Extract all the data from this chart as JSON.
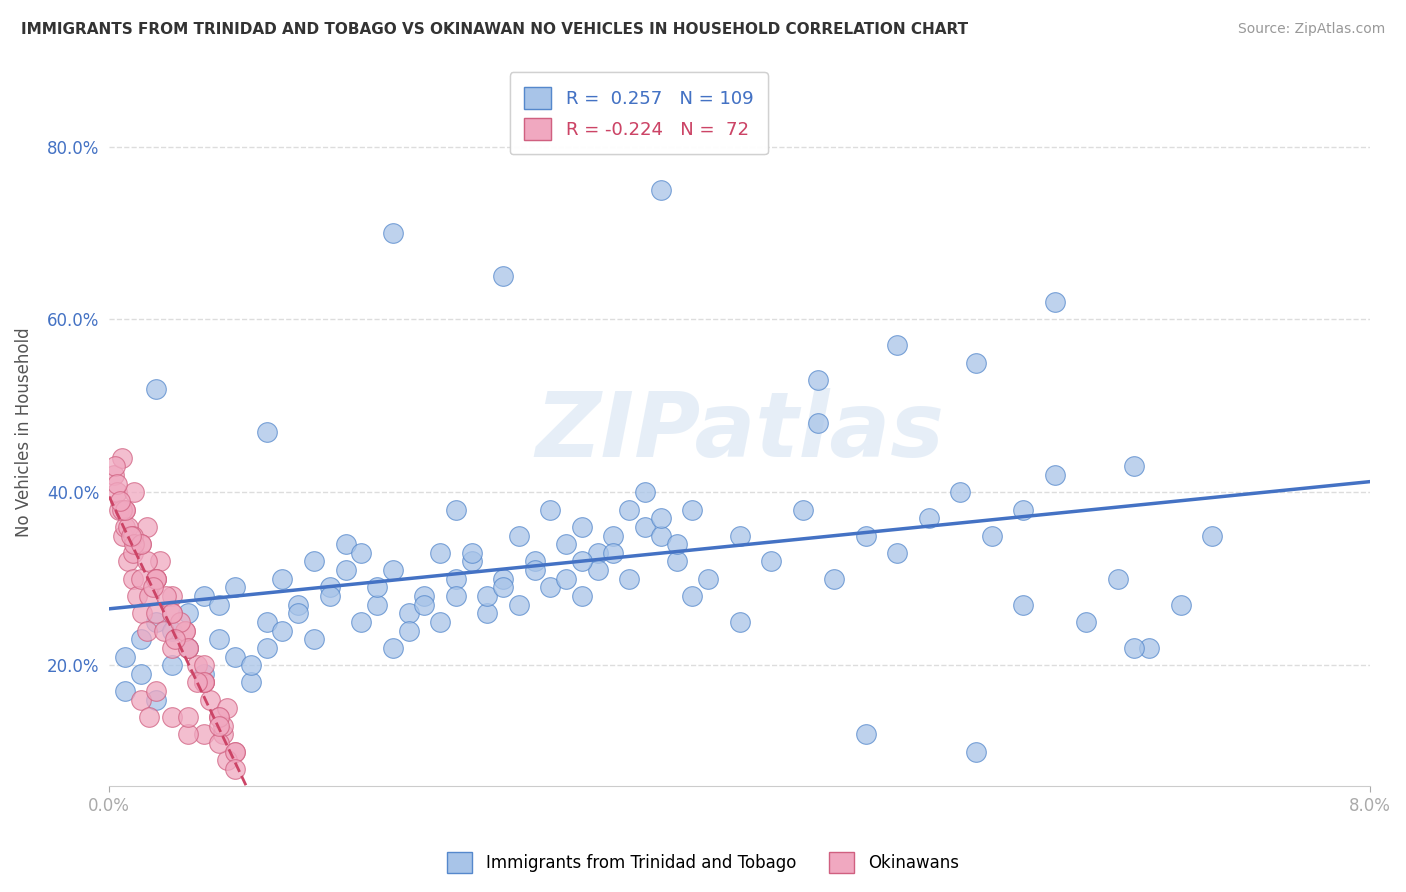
{
  "title": "IMMIGRANTS FROM TRINIDAD AND TOBAGO VS OKINAWAN NO VEHICLES IN HOUSEHOLD CORRELATION CHART",
  "source": "Source: ZipAtlas.com",
  "ylabel": "No Vehicles in Household",
  "xlim": [
    0.0,
    0.08
  ],
  "ylim": [
    0.06,
    0.88
  ],
  "yticks": [
    0.2,
    0.4,
    0.6,
    0.8
  ],
  "ytick_labels": [
    "20.0%",
    "40.0%",
    "60.0%",
    "80.0%"
  ],
  "blue_R": 0.257,
  "blue_N": 109,
  "pink_R": -0.224,
  "pink_N": 72,
  "blue_label": "Immigrants from Trinidad and Tobago",
  "pink_label": "Okinawans",
  "blue_color": "#a8c4e8",
  "pink_color": "#f0a8c0",
  "blue_edge_color": "#5588cc",
  "pink_edge_color": "#d06080",
  "blue_line_color": "#4472c4",
  "pink_line_color": "#cc4466",
  "watermark": "ZIPatlas",
  "background_color": "#ffffff",
  "grid_color": "#dddddd",
  "blue_x": [
    0.001,
    0.002,
    0.001,
    0.003,
    0.002,
    0.004,
    0.003,
    0.005,
    0.004,
    0.006,
    0.005,
    0.007,
    0.006,
    0.008,
    0.007,
    0.009,
    0.008,
    0.01,
    0.009,
    0.011,
    0.01,
    0.012,
    0.011,
    0.013,
    0.012,
    0.014,
    0.013,
    0.015,
    0.014,
    0.016,
    0.015,
    0.017,
    0.016,
    0.018,
    0.017,
    0.019,
    0.018,
    0.02,
    0.019,
    0.021,
    0.02,
    0.022,
    0.021,
    0.023,
    0.022,
    0.024,
    0.023,
    0.025,
    0.024,
    0.026,
    0.025,
    0.027,
    0.026,
    0.028,
    0.027,
    0.029,
    0.028,
    0.03,
    0.029,
    0.031,
    0.03,
    0.032,
    0.031,
    0.033,
    0.032,
    0.034,
    0.033,
    0.035,
    0.034,
    0.036,
    0.035,
    0.037,
    0.036,
    0.038,
    0.037,
    0.04,
    0.042,
    0.044,
    0.046,
    0.048,
    0.05,
    0.052,
    0.054,
    0.056,
    0.058,
    0.06,
    0.062,
    0.064,
    0.066,
    0.068,
    0.07,
    0.045,
    0.05,
    0.055,
    0.06,
    0.065,
    0.003,
    0.01,
    0.018,
    0.025,
    0.035,
    0.045,
    0.055,
    0.065,
    0.022,
    0.048,
    0.058,
    0.03,
    0.04
  ],
  "blue_y": [
    0.17,
    0.19,
    0.21,
    0.16,
    0.23,
    0.2,
    0.25,
    0.22,
    0.24,
    0.19,
    0.26,
    0.23,
    0.28,
    0.21,
    0.27,
    0.18,
    0.29,
    0.25,
    0.2,
    0.3,
    0.22,
    0.27,
    0.24,
    0.32,
    0.26,
    0.29,
    0.23,
    0.34,
    0.28,
    0.25,
    0.31,
    0.27,
    0.33,
    0.22,
    0.29,
    0.26,
    0.31,
    0.28,
    0.24,
    0.33,
    0.27,
    0.3,
    0.25,
    0.32,
    0.28,
    0.26,
    0.33,
    0.3,
    0.28,
    0.35,
    0.29,
    0.32,
    0.27,
    0.38,
    0.31,
    0.34,
    0.29,
    0.36,
    0.3,
    0.33,
    0.28,
    0.35,
    0.31,
    0.38,
    0.33,
    0.36,
    0.3,
    0.35,
    0.4,
    0.32,
    0.37,
    0.28,
    0.34,
    0.3,
    0.38,
    0.35,
    0.32,
    0.38,
    0.3,
    0.35,
    0.33,
    0.37,
    0.4,
    0.35,
    0.38,
    0.42,
    0.25,
    0.3,
    0.22,
    0.27,
    0.35,
    0.53,
    0.57,
    0.55,
    0.62,
    0.22,
    0.52,
    0.47,
    0.7,
    0.65,
    0.75,
    0.48,
    0.1,
    0.43,
    0.38,
    0.12,
    0.27,
    0.32,
    0.25
  ],
  "pink_x": [
    0.0003,
    0.0006,
    0.0009,
    0.0012,
    0.0015,
    0.0018,
    0.0021,
    0.0024,
    0.0005,
    0.001,
    0.0015,
    0.002,
    0.0025,
    0.003,
    0.0035,
    0.004,
    0.0008,
    0.0016,
    0.0024,
    0.0032,
    0.004,
    0.0048,
    0.0056,
    0.0064,
    0.0072,
    0.001,
    0.002,
    0.003,
    0.004,
    0.005,
    0.006,
    0.007,
    0.0012,
    0.0024,
    0.0036,
    0.0048,
    0.006,
    0.0072,
    0.0015,
    0.003,
    0.0045,
    0.006,
    0.0075,
    0.002,
    0.004,
    0.006,
    0.008,
    0.0025,
    0.005,
    0.0075,
    0.0004,
    0.0008,
    0.0016,
    0.003,
    0.005,
    0.007,
    0.0005,
    0.001,
    0.002,
    0.003,
    0.004,
    0.005,
    0.006,
    0.007,
    0.008,
    0.0007,
    0.0014,
    0.0028,
    0.0042,
    0.0056,
    0.007,
    0.008
  ],
  "pink_y": [
    0.42,
    0.38,
    0.35,
    0.32,
    0.3,
    0.28,
    0.26,
    0.24,
    0.4,
    0.36,
    0.33,
    0.3,
    0.28,
    0.26,
    0.24,
    0.22,
    0.44,
    0.4,
    0.36,
    0.32,
    0.28,
    0.24,
    0.2,
    0.16,
    0.12,
    0.38,
    0.34,
    0.3,
    0.26,
    0.22,
    0.18,
    0.14,
    0.36,
    0.32,
    0.28,
    0.24,
    0.18,
    0.13,
    0.35,
    0.3,
    0.25,
    0.2,
    0.15,
    0.16,
    0.14,
    0.12,
    0.1,
    0.14,
    0.12,
    0.09,
    0.43,
    0.38,
    0.34,
    0.17,
    0.14,
    0.11,
    0.41,
    0.38,
    0.34,
    0.3,
    0.26,
    0.22,
    0.18,
    0.14,
    0.1,
    0.39,
    0.35,
    0.29,
    0.23,
    0.18,
    0.13,
    0.08
  ]
}
